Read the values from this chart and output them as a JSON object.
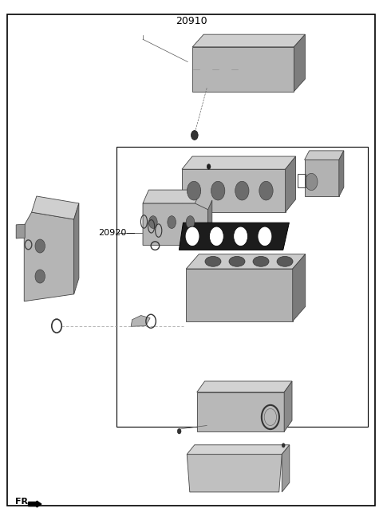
{
  "title": "20910",
  "label_20920": "20920",
  "label_fr": "FR.",
  "bg_color": "#ffffff",
  "border_color": "#000000",
  "text_color": "#000000",
  "fig_width": 4.8,
  "fig_height": 6.57,
  "dpi": 100
}
